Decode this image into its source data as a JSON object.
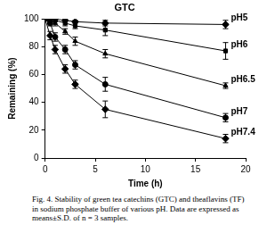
{
  "chart_data": {
    "type": "line",
    "title": "GTC",
    "x_label": "Time (h)",
    "y_label": "Remaining (%)",
    "x": [
      0,
      0.5,
      1,
      2,
      3,
      6,
      18
    ],
    "xlim": [
      0,
      20
    ],
    "xticks": [
      0,
      5,
      10,
      15,
      20
    ],
    "ylim": [
      0,
      100
    ],
    "yticks": [
      0,
      20,
      40,
      60,
      80,
      100
    ],
    "grid": false,
    "series": [
      {
        "name": "pH5",
        "color": "#000000",
        "marker": "diamond",
        "line_style": "solid",
        "values": [
          100,
          100,
          100,
          99,
          98,
          97,
          96
        ],
        "errors": [
          0,
          0,
          0,
          1,
          1,
          2,
          3
        ]
      },
      {
        "name": "pH6",
        "color": "#000000",
        "marker": "square",
        "line_style": "solid",
        "values": [
          100,
          100,
          99,
          97,
          95,
          92,
          77
        ],
        "errors": [
          0,
          0,
          1,
          2,
          2,
          4,
          6
        ]
      },
      {
        "name": "pH6.5",
        "color": "#000000",
        "marker": "triangle",
        "line_style": "solid",
        "values": [
          100,
          99,
          97,
          91,
          84,
          75,
          52
        ],
        "errors": [
          0,
          1,
          2,
          2,
          3,
          3,
          2
        ]
      },
      {
        "name": "pH7",
        "color": "#000000",
        "marker": "circle",
        "line_style": "solid",
        "values": [
          100,
          97,
          87,
          78,
          67,
          53,
          29
        ],
        "errors": [
          0,
          2,
          3,
          3,
          3,
          5,
          3
        ]
      },
      {
        "name": "pH7.4",
        "color": "#000000",
        "marker": "diamond",
        "line_style": "solid",
        "values": [
          100,
          88,
          78,
          64,
          53,
          35,
          14
        ],
        "errors": [
          0,
          3,
          3,
          3,
          3,
          6,
          3
        ]
      }
    ]
  },
  "caption": "Fig. 4. Stability of green tea catechins (GTC) and theaflavins (TF) in sodium phosphate buffer of various pH. Data are expressed as means±S.D. of n = 3 samples."
}
